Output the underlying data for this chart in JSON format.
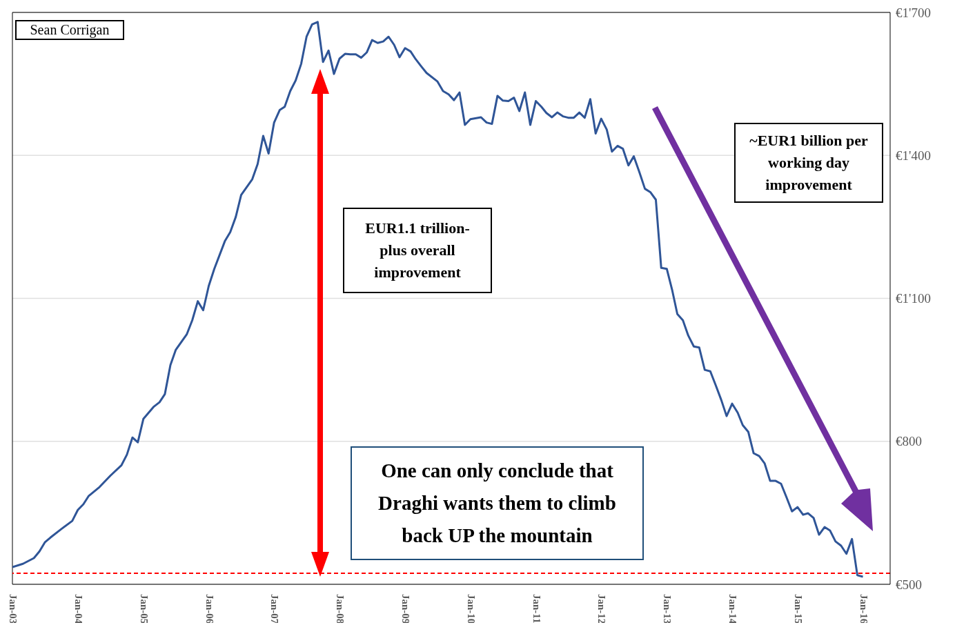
{
  "chart_data": {
    "type": "line",
    "x": [
      "2003-01",
      "2003-03",
      "2003-05",
      "2003-06",
      "2003-07",
      "2003-08",
      "2003-10",
      "2003-12",
      "2004-01",
      "2004-02",
      "2004-03",
      "2004-05",
      "2004-07",
      "2004-09",
      "2004-10",
      "2004-11",
      "2004-12",
      "2005-01",
      "2005-03",
      "2005-04",
      "2005-05",
      "2005-06",
      "2005-07",
      "2005-09",
      "2005-10",
      "2005-11",
      "2005-12",
      "2006-01",
      "2006-02",
      "2006-04",
      "2006-05",
      "2006-06",
      "2006-07",
      "2006-09",
      "2006-10",
      "2006-11",
      "2006-12",
      "2007-01",
      "2007-02",
      "2007-03",
      "2007-04",
      "2007-05",
      "2007-06",
      "2007-07",
      "2007-08",
      "2007-09",
      "2007-10",
      "2007-11",
      "2007-12",
      "2008-01",
      "2008-02",
      "2008-03",
      "2008-04",
      "2008-05",
      "2008-06",
      "2008-07",
      "2008-08",
      "2008-09",
      "2008-10",
      "2008-11",
      "2008-12",
      "2009-01",
      "2009-02",
      "2009-03",
      "2009-04",
      "2009-05",
      "2009-07",
      "2009-08",
      "2009-09",
      "2009-10",
      "2009-11",
      "2009-12",
      "2010-01",
      "2010-03",
      "2010-04",
      "2010-05",
      "2010-06",
      "2010-07",
      "2010-08",
      "2010-09",
      "2010-10",
      "2010-11",
      "2010-12",
      "2011-01",
      "2011-02",
      "2011-03",
      "2011-04",
      "2011-05",
      "2011-06",
      "2011-07",
      "2011-08",
      "2011-09",
      "2011-10",
      "2011-11",
      "2011-12",
      "2012-01",
      "2012-02",
      "2012-03",
      "2012-04",
      "2012-05",
      "2012-06",
      "2012-07",
      "2012-08",
      "2012-09",
      "2012-10",
      "2012-11",
      "2012-12",
      "2013-01",
      "2013-02",
      "2013-03",
      "2013-04",
      "2013-05",
      "2013-06",
      "2013-07",
      "2013-08",
      "2013-09",
      "2013-10",
      "2013-11",
      "2013-12",
      "2014-01",
      "2014-02",
      "2014-03",
      "2014-04",
      "2014-05",
      "2014-06",
      "2014-07",
      "2014-08",
      "2014-09",
      "2014-10",
      "2014-11",
      "2014-12",
      "2015-01",
      "2015-02",
      "2015-03",
      "2015-04",
      "2015-05",
      "2015-06",
      "2015-07",
      "2015-08",
      "2015-09",
      "2015-10",
      "2015-11",
      "2015-12",
      "2016-01"
    ],
    "series": [
      {
        "color": "#2f5597",
        "values": [
          536,
          543,
          555,
          569,
          588,
          598,
          616,
          633,
          656,
          668,
          685,
          704,
          728,
          750,
          772,
          808,
          798,
          847,
          873,
          882,
          899,
          960,
          992,
          1025,
          1054,
          1094,
          1075,
          1126,
          1162,
          1220,
          1239,
          1271,
          1317,
          1350,
          1382,
          1441,
          1404,
          1469,
          1495,
          1502,
          1535,
          1557,
          1592,
          1649,
          1675,
          1680,
          1596,
          1620,
          1571,
          1603,
          1613,
          1612,
          1612,
          1605,
          1616,
          1642,
          1636,
          1639,
          1649,
          1632,
          1606,
          1625,
          1618,
          1602,
          1587,
          1573,
          1555,
          1535,
          1528,
          1516,
          1532,
          1464,
          1476,
          1480,
          1469,
          1466,
          1525,
          1515,
          1514,
          1521,
          1493,
          1532,
          1464,
          1514,
          1502,
          1489,
          1480,
          1490,
          1482,
          1479,
          1479,
          1490,
          1479,
          1518,
          1446,
          1477,
          1454,
          1408,
          1420,
          1414,
          1379,
          1398,
          1365,
          1330,
          1323,
          1307,
          1164,
          1162,
          1116,
          1067,
          1054,
          1022,
          999,
          997,
          950,
          947,
          918,
          887,
          853,
          879,
          860,
          834,
          820,
          775,
          769,
          754,
          717,
          717,
          711,
          682,
          653,
          662,
          646,
          649,
          639,
          604,
          620,
          613,
          590,
          581,
          564,
          595,
          519,
          516
        ]
      }
    ],
    "xlim": [
      "2003-01",
      "2016-06"
    ],
    "xticks": [
      {
        "value": "2003-01",
        "label": "Jan-03"
      },
      {
        "value": "2004-01",
        "label": "Jan-04"
      },
      {
        "value": "2005-01",
        "label": "Jan-05"
      },
      {
        "value": "2006-01",
        "label": "Jan-06"
      },
      {
        "value": "2007-01",
        "label": "Jan-07"
      },
      {
        "value": "2008-01",
        "label": "Jan-08"
      },
      {
        "value": "2009-01",
        "label": "Jan-09"
      },
      {
        "value": "2010-01",
        "label": "Jan-10"
      },
      {
        "value": "2011-01",
        "label": "Jan-11"
      },
      {
        "value": "2012-01",
        "label": "Jan-12"
      },
      {
        "value": "2013-01",
        "label": "Jan-13"
      },
      {
        "value": "2014-01",
        "label": "Jan-14"
      },
      {
        "value": "2015-01",
        "label": "Jan-15"
      },
      {
        "value": "2016-01",
        "label": "Jan-16"
      }
    ],
    "ylim": [
      500,
      1700
    ],
    "yticks": [
      {
        "value": 500,
        "label": "€500"
      },
      {
        "value": 800,
        "label": "€800"
      },
      {
        "value": 1100,
        "label": "€1'100"
      },
      {
        "value": 1400,
        "label": "€1'400"
      },
      {
        "value": 1700,
        "label": "€1'700"
      }
    ],
    "ref_lines": [
      {
        "axis": "y",
        "value": 523,
        "color": "#ff0000",
        "line_style": "dashed"
      }
    ],
    "annotations": [
      "Sean Corrigan",
      "EUR1.1 trillion-plus overall improvement",
      "~EUR1 billion per working day improvement",
      "One can only conclude that Draghi wants them to climb back UP the mountain"
    ],
    "grid": "y",
    "legend": false,
    "marker": "none",
    "line_style": "solid"
  }
}
